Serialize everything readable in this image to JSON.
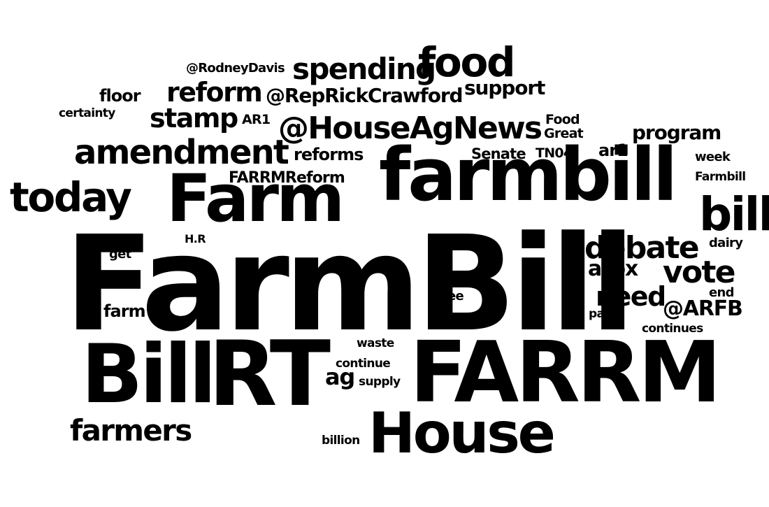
{
  "cloud": {
    "text_color": "#000000",
    "background": "#ffffff",
    "words": {
      "farmbill_big": "FarmBill",
      "farrm": "FARRM",
      "bill_caps": "Bill",
      "rt": "RT",
      "house": "House",
      "farmbill_lower": "farmbill",
      "farm_cap": "Farm",
      "today": "today",
      "amendment": "amendment",
      "food": "food",
      "spending": "spending",
      "house_ag_news": "@HouseAgNews",
      "bill": "bill",
      "debate": "debate",
      "vote": "vote",
      "farmers": "farmers",
      "reform": "reform",
      "stamp": "stamp",
      "rep_rick_crawford": "@RepRickCrawford",
      "support": "support",
      "program": "program",
      "need": "need",
      "arpx": "arpx",
      "arfb": "@ARFB",
      "floor": "floor",
      "rodney_davis": "@RodneyDavis",
      "certainty": "certainty",
      "ar1_caps": "AR1",
      "food_cap": "Food",
      "great": "Great",
      "reforms": "reforms",
      "senate": "Senate",
      "tn04": "TN04",
      "ar1": "ar1",
      "week": "week",
      "farrm_reform": "FARRMReform",
      "farmbill_cap": "Farmbill",
      "hr": "H.R",
      "get": "get",
      "farm": "farm",
      "see": "see",
      "dairy": "dairy",
      "end": "end",
      "pass": "pass",
      "continues": "continues",
      "waste": "waste",
      "continue": "continue",
      "ag": "ag",
      "supply": "supply",
      "billion": "billion"
    }
  }
}
